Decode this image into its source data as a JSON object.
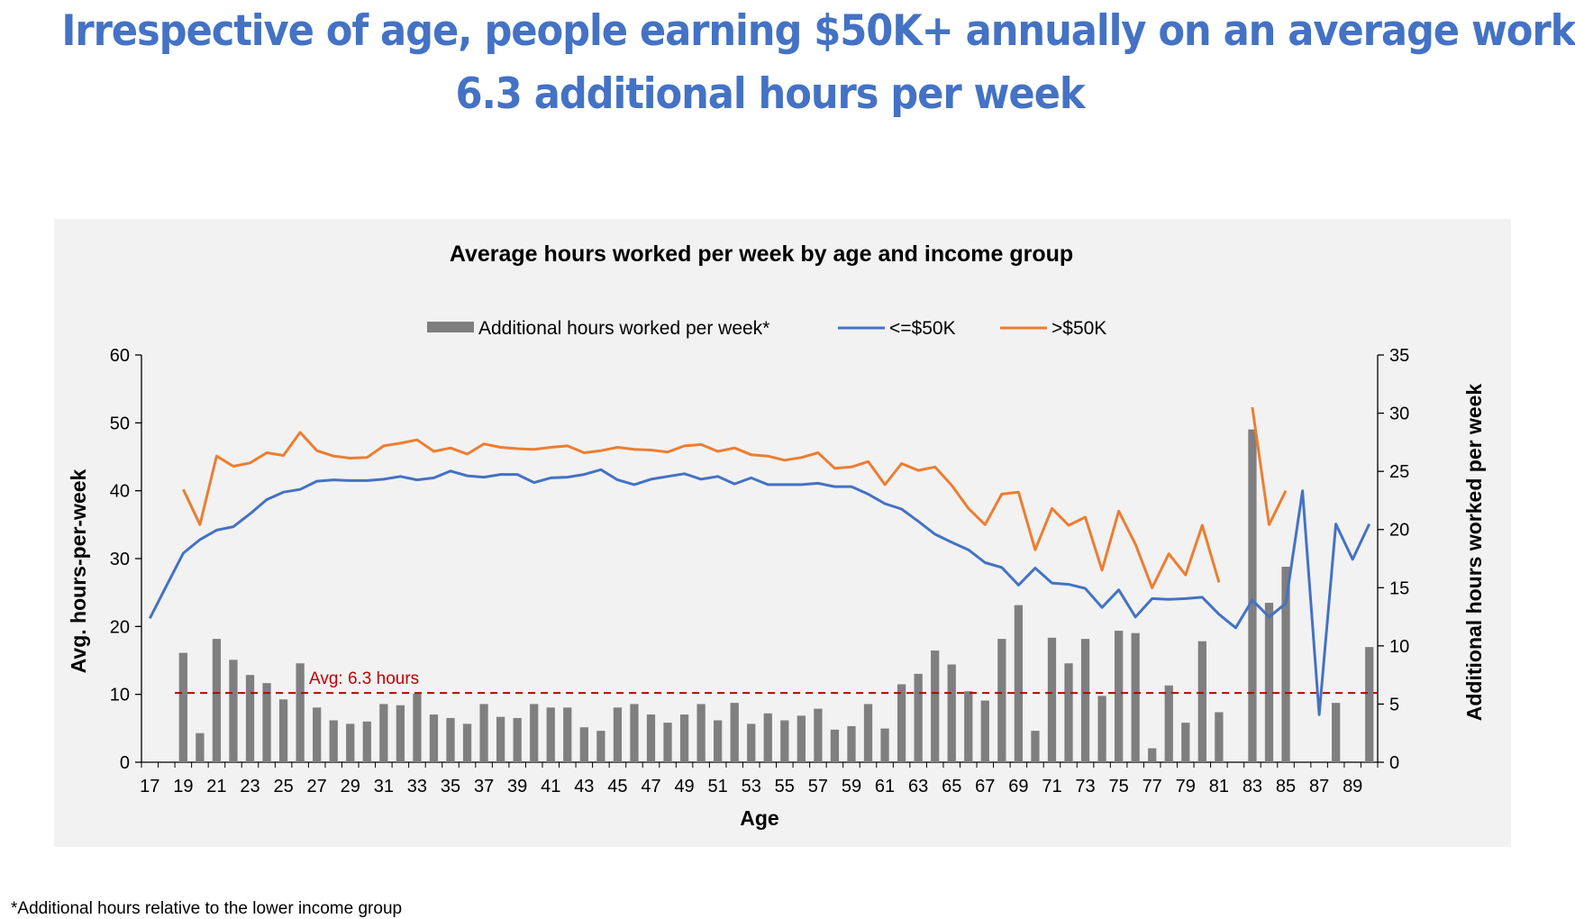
{
  "headline": {
    "line1": "Irrespective of age, people earning $50K+ annually on an average work",
    "line2": "6.3 additional hours per week"
  },
  "footnote": "*Additional hours relative to the lower income group",
  "colors": {
    "headline": "#4472C4",
    "bars": "#7F7F7F",
    "low": "#4472C4",
    "high": "#ED7D31",
    "avg_line": "#C00000",
    "panel": "#F2F2F2"
  },
  "chart_data": {
    "type": "bar+line",
    "title": "Average hours worked per week by age and income group",
    "xlabel": "Age",
    "ylabel_left": "Avg. hours-per-week",
    "ylabel_right": "Additional hours worked per week",
    "ylim_left": [
      0,
      60
    ],
    "yticks_left": [
      "0",
      "10",
      "20",
      "30",
      "40",
      "50",
      "60"
    ],
    "ylim_right": [
      0,
      35
    ],
    "yticks_right": [
      "0",
      "5",
      "10",
      "15",
      "20",
      "25",
      "30",
      "35"
    ],
    "legend_position": "top",
    "avg_label": "Avg: 6.3 hours",
    "avg_value_left_axis": 10.2,
    "categories": [
      17,
      18,
      19,
      20,
      21,
      22,
      23,
      24,
      25,
      26,
      27,
      28,
      29,
      30,
      31,
      32,
      33,
      34,
      35,
      36,
      37,
      38,
      39,
      40,
      41,
      42,
      43,
      44,
      45,
      46,
      47,
      48,
      49,
      50,
      51,
      52,
      53,
      54,
      55,
      56,
      57,
      58,
      59,
      60,
      61,
      62,
      63,
      64,
      65,
      66,
      67,
      68,
      69,
      70,
      71,
      72,
      73,
      74,
      75,
      76,
      77,
      78,
      79,
      80,
      81,
      82,
      83,
      84,
      85,
      86,
      87,
      88,
      89,
      90
    ],
    "xtick_labels": [
      "17",
      "19",
      "21",
      "23",
      "25",
      "27",
      "29",
      "31",
      "33",
      "35",
      "37",
      "39",
      "41",
      "43",
      "45",
      "47",
      "49",
      "51",
      "53",
      "55",
      "57",
      "59",
      "61",
      "63",
      "65",
      "67",
      "69",
      "71",
      "73",
      "75",
      "77",
      "79",
      "81",
      "83",
      "85",
      "87",
      "89"
    ],
    "series": [
      {
        "name": "Additional hours worked per week*",
        "type": "bar",
        "axis": "right",
        "values": [
          null,
          null,
          9.4,
          2.5,
          10.6,
          8.8,
          7.5,
          6.8,
          5.4,
          8.5,
          4.7,
          3.6,
          3.3,
          3.5,
          5.0,
          4.9,
          5.9,
          4.1,
          3.8,
          3.3,
          5.0,
          3.9,
          3.8,
          5.0,
          4.7,
          4.7,
          3.0,
          2.7,
          4.7,
          5.0,
          4.1,
          3.4,
          4.1,
          5.0,
          3.6,
          5.1,
          3.3,
          4.2,
          3.6,
          4.0,
          4.6,
          2.8,
          3.1,
          5.0,
          2.9,
          6.7,
          7.6,
          9.6,
          8.4,
          6.1,
          5.3,
          10.6,
          13.5,
          2.7,
          10.7,
          8.5,
          10.6,
          5.7,
          11.3,
          11.1,
          1.2,
          6.6,
          3.4,
          10.4,
          4.3,
          null,
          28.6,
          13.7,
          16.8,
          null,
          null,
          5.1,
          null,
          9.9
        ]
      },
      {
        "name": "<=$50K",
        "type": "line",
        "axis": "left",
        "values": [
          21.2,
          26.0,
          30.8,
          32.8,
          34.2,
          34.7,
          36.6,
          38.7,
          39.8,
          40.2,
          41.4,
          41.6,
          41.5,
          41.5,
          41.7,
          42.1,
          41.6,
          41.9,
          42.9,
          42.2,
          42.0,
          42.4,
          42.4,
          41.2,
          41.9,
          42.0,
          42.4,
          43.1,
          41.6,
          40.9,
          41.7,
          42.1,
          42.5,
          41.7,
          42.1,
          41.0,
          41.9,
          40.9,
          40.9,
          40.9,
          41.1,
          40.6,
          40.6,
          39.5,
          38.1,
          37.3,
          35.5,
          33.6,
          32.4,
          31.3,
          29.4,
          28.7,
          26.1,
          28.6,
          26.4,
          26.2,
          25.6,
          22.8,
          25.4,
          21.4,
          24.1,
          24.0,
          24.1,
          24.3,
          21.8,
          19.8,
          23.9,
          21.4,
          23.4,
          40.0,
          7.0,
          35.1,
          29.9,
          35.1
        ]
      },
      {
        "name": ">$50K",
        "type": "line",
        "axis": "left",
        "values": [
          null,
          null,
          40.2,
          35.0,
          45.1,
          43.6,
          44.1,
          45.6,
          45.2,
          48.6,
          45.9,
          45.1,
          44.8,
          44.9,
          46.6,
          47.0,
          47.5,
          45.8,
          46.3,
          45.4,
          46.9,
          46.4,
          46.2,
          46.1,
          46.4,
          46.6,
          45.6,
          45.9,
          46.4,
          46.1,
          46.0,
          45.7,
          46.6,
          46.8,
          45.8,
          46.3,
          45.3,
          45.1,
          44.5,
          44.9,
          45.6,
          43.3,
          43.5,
          44.3,
          40.9,
          44.0,
          43.0,
          43.5,
          40.8,
          37.4,
          35.0,
          39.5,
          39.8,
          31.3,
          37.4,
          34.9,
          36.1,
          28.3,
          37.0,
          32.1,
          25.7,
          30.7,
          27.6,
          34.9,
          26.5,
          null,
          52.3,
          35.0,
          40.0,
          null,
          null,
          null,
          null,
          null
        ]
      }
    ]
  }
}
